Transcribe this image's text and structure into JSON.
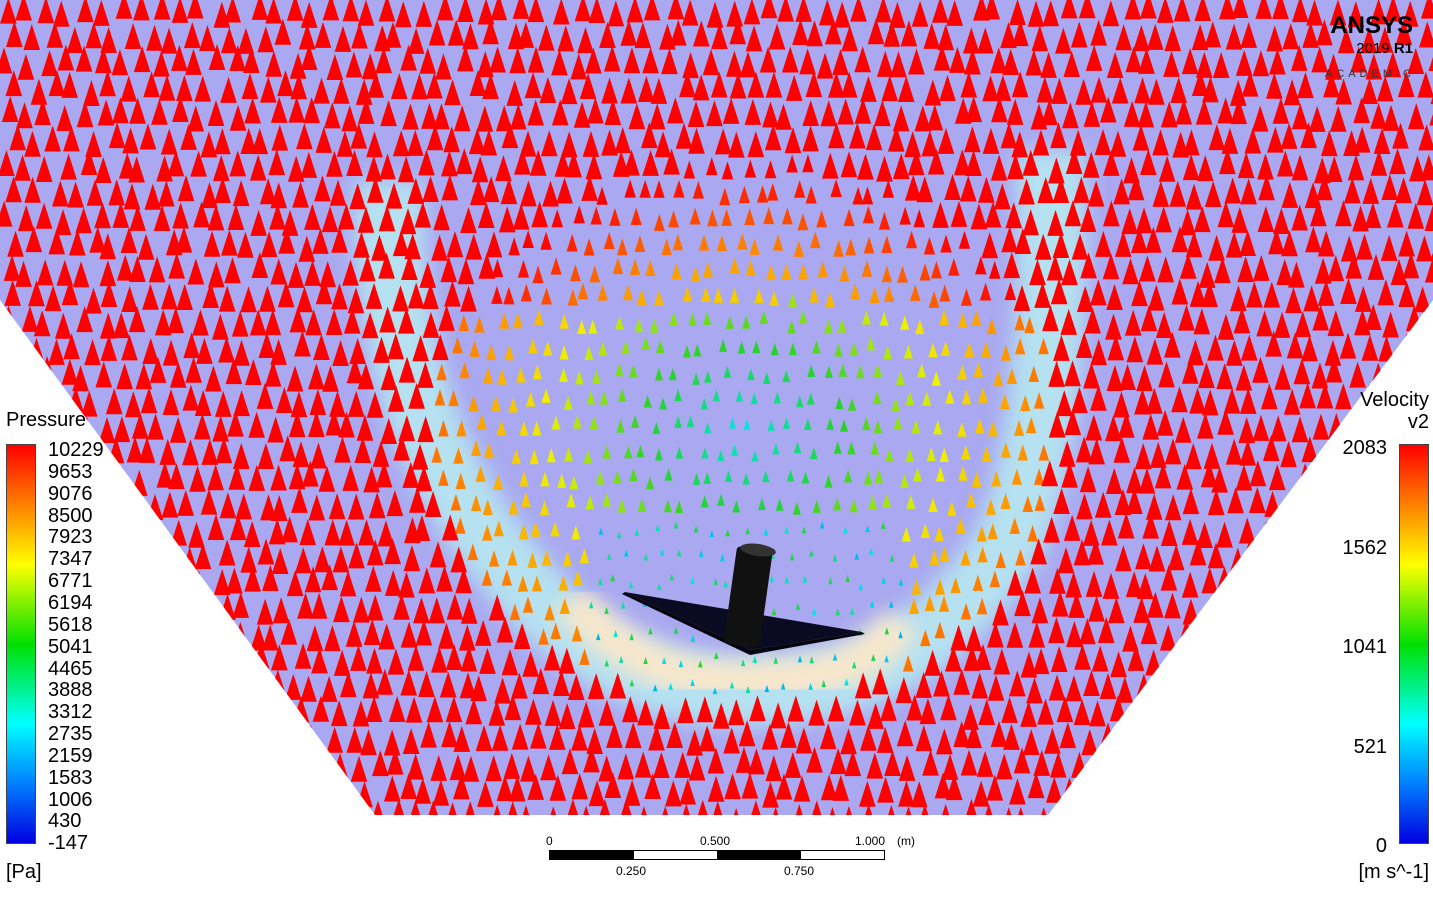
{
  "logo": {
    "brand": "ANSYS",
    "version_year": "2019",
    "version_release": "R1",
    "edition": "ACADEMIC"
  },
  "pressure_legend": {
    "title": "Pressure",
    "unit": "[Pa]",
    "labels": [
      "10229",
      "9653",
      "9076",
      "8500",
      "7923",
      "7347",
      "6771",
      "6194",
      "5618",
      "5041",
      "4465",
      "3888",
      "3312",
      "2735",
      "2159",
      "1583",
      "1006",
      "430",
      "-147"
    ]
  },
  "velocity_legend": {
    "title": "Velocity",
    "subtitle": "v2",
    "unit": "[m s^-1]",
    "labels": [
      "2083",
      "1562",
      "1041",
      "521",
      "0"
    ]
  },
  "scale_bar": {
    "top_labels": [
      "0",
      "0.500",
      "1.000"
    ],
    "unit": "(m)",
    "bottom_labels": [
      "0.250",
      "0.750"
    ]
  },
  "colors": {
    "domain_fill": "#a9a8f0",
    "arrow_far": "#ff1a1a",
    "wake_glow": "#a8ecf2",
    "body": "#0a0a14"
  }
}
